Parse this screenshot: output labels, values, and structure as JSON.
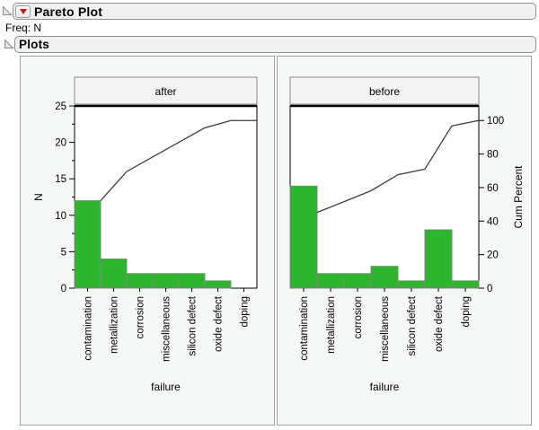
{
  "window": {
    "title": "Pareto Plot",
    "freq_label": "Freq: N",
    "plots_label": "Plots"
  },
  "icons": {
    "disclosure_triangle": "open-outline-disclosure",
    "red_triangle": "jmp-red-triangle-menu"
  },
  "colors": {
    "bar_fill": "#2db52d",
    "bar_border": "#858585",
    "cum_line": "#3f3f3f",
    "plot_bg": "#ffffff",
    "frame": "#000000",
    "panel_bg": "#f6f7f7",
    "banner_bg": "#f4f4f4",
    "banner_border": "#8a8a8a",
    "red_triangle": "#cc1111"
  },
  "chart_data": [
    {
      "type": "bar",
      "panel_title": "after",
      "categories": [
        "contamination",
        "metallization",
        "corrosion",
        "miscellaneous",
        "silicon defect",
        "oxide defect",
        "doping"
      ],
      "values": [
        12,
        4,
        2,
        2,
        2,
        1,
        0
      ],
      "cumulative_n": [
        12,
        16,
        18,
        20,
        22,
        23,
        23
      ],
      "total_n": 23,
      "xlabel": "failure",
      "ylabel": "N",
      "y_axis": {
        "side": "left",
        "min": 0,
        "max": 25,
        "major": 5,
        "minor": 2.5,
        "tick_labels": [
          "0",
          "5",
          "10",
          "15",
          "20",
          "25"
        ]
      },
      "grid": false,
      "legend": "none"
    },
    {
      "type": "bar",
      "panel_title": "before",
      "categories": [
        "contamination",
        "metallization",
        "corrosion",
        "miscellaneous",
        "silicon defect",
        "oxide defect",
        "doping"
      ],
      "values": [
        14,
        2,
        2,
        3,
        1,
        8,
        1
      ],
      "cumulative_n": [
        14,
        16,
        18,
        21,
        22,
        30,
        31
      ],
      "cumulative_percent": [
        45.2,
        51.6,
        58.1,
        67.7,
        71.0,
        96.8,
        100
      ],
      "total_n": 31,
      "xlabel": "failure",
      "ylabel": "Cum Percent",
      "bar_scale": {
        "min": 0,
        "max": 25
      },
      "y_axis": {
        "side": "right",
        "min": 0,
        "max": 100,
        "major": 20,
        "aligns_100_with_n": 23,
        "tick_labels": [
          "0",
          "20",
          "40",
          "60",
          "80",
          "100"
        ]
      },
      "grid": false,
      "legend": "none"
    }
  ]
}
